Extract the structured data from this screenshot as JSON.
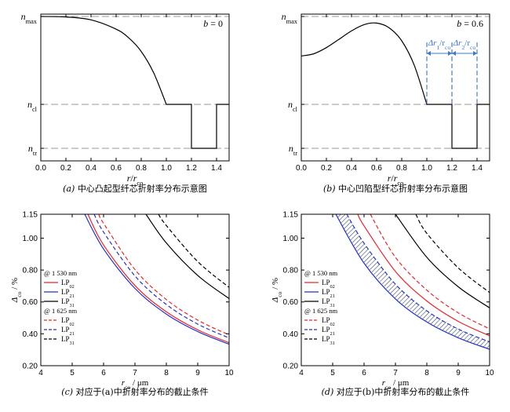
{
  "chart_data": [
    {
      "id": "a",
      "type": "line",
      "caption": "(a) 中心凸起型纤芯折射率分布示意图",
      "xlabel": "r/r",
      "xlabel_sub": "co",
      "xlim": [
        0,
        1.5
      ],
      "x_ticks": [
        "0.0",
        "0.2",
        "0.4",
        "0.6",
        "0.8",
        "1.0",
        "1.2",
        "1.4"
      ],
      "y_labels": [
        {
          "base": "n",
          "sub": "max",
          "level": "max"
        },
        {
          "base": "n",
          "sub": "cl",
          "level": "cl"
        },
        {
          "base": "n",
          "sub": "tr",
          "level": "tr"
        }
      ],
      "annotation": "b = 0",
      "series": [
        {
          "color": "#000000",
          "dash": "",
          "points": [
            [
              0,
              1.0
            ],
            [
              0.2,
              0.9964
            ],
            [
              0.4,
              0.9744
            ],
            [
              0.6,
              0.9036
            ],
            [
              0.7,
              0.8383
            ],
            [
              0.8,
              0.7344
            ],
            [
              0.9,
              0.5708
            ],
            [
              1.0,
              0.3333
            ],
            [
              1.2,
              0.3333
            ],
            [
              1.2,
              0.0
            ],
            [
              1.4,
              0.0
            ],
            [
              1.4,
              0.3333
            ],
            [
              1.5,
              0.3333
            ]
          ]
        }
      ],
      "reference_lines": [
        "max",
        "cl",
        "tr"
      ]
    },
    {
      "id": "b",
      "type": "line",
      "caption": "(b) 中心凹陷型纤芯折射率分布示意图",
      "xlabel": "r/r",
      "xlabel_sub": "co",
      "xlim": [
        0,
        1.5
      ],
      "x_ticks": [
        "0.0",
        "0.2",
        "0.4",
        "0.6",
        "0.8",
        "1.0",
        "1.2",
        "1.4"
      ],
      "y_labels": [
        {
          "base": "n",
          "sub": "max",
          "level": "max"
        },
        {
          "base": "n",
          "sub": "cl",
          "level": "cl"
        },
        {
          "base": "n",
          "sub": "tr",
          "level": "tr"
        }
      ],
      "annotation": "b = 0.6",
      "arrows": [
        {
          "label": "Δr",
          "label_sub": "1",
          "tail": "/r",
          "tail_sub": "co",
          "from": 1.0,
          "to": 1.2
        },
        {
          "label": "Δr",
          "label_sub": "2",
          "tail": "/r",
          "tail_sub": "co",
          "from": 1.2,
          "to": 1.4
        }
      ],
      "series": [
        {
          "color": "#000000",
          "dash": "",
          "points": [
            [
              0,
              0.7
            ],
            [
              0.1,
              0.7173
            ],
            [
              0.2,
              0.7639
            ],
            [
              0.3,
              0.8268
            ],
            [
              0.4,
              0.8907
            ],
            [
              0.5,
              0.9381
            ],
            [
              0.6,
              0.95
            ],
            [
              0.7,
              0.9137
            ],
            [
              0.8,
              0.8154
            ],
            [
              0.9,
              0.6298
            ],
            [
              1.0,
              0.3333
            ],
            [
              1.2,
              0.3333
            ],
            [
              1.2,
              0.0
            ],
            [
              1.4,
              0.0
            ],
            [
              1.4,
              0.3333
            ],
            [
              1.5,
              0.3333
            ]
          ]
        }
      ],
      "reference_lines": [
        "max",
        "cl",
        "tr"
      ]
    },
    {
      "id": "c",
      "type": "line",
      "caption": "(c) 对应于(a)中折射率分布的截止条件",
      "xlabel": "r",
      "xlabel_sub": "co",
      "xlabel_tail": " / μm",
      "ylabel": "Δ",
      "ylabel_sub": "co",
      "ylabel_tail": " / %",
      "xlim": [
        4,
        10
      ],
      "ylim": [
        0.2,
        1.15
      ],
      "x_ticks": [
        "4",
        "5",
        "6",
        "7",
        "8",
        "9",
        "10"
      ],
      "y_ticks": [
        "0.20",
        "0.40",
        "0.60",
        "0.80",
        "1.00",
        "1.15"
      ],
      "legend": {
        "group1": "@ 1 530 nm",
        "group2": "@ 1 625 nm",
        "items": [
          {
            "base": "LP",
            "sub": "02",
            "color": "#e8262a",
            "dash": ""
          },
          {
            "base": "LP",
            "sub": "21",
            "color": "#2432c8",
            "dash": ""
          },
          {
            "base": "LP",
            "sub": "31",
            "color": "#000000",
            "dash": ""
          },
          {
            "base": "LP",
            "sub": "02",
            "color": "#e8262a",
            "dash": "5,3"
          },
          {
            "base": "LP",
            "sub": "21",
            "color": "#2432c8",
            "dash": "5,3"
          },
          {
            "base": "LP",
            "sub": "31",
            "color": "#000000",
            "dash": "5,3"
          }
        ]
      },
      "series": [
        {
          "color": "#e8262a",
          "dash": "",
          "points": [
            [
              5.5,
              1.15
            ],
            [
              6,
              0.957
            ],
            [
              7,
              0.703
            ],
            [
              8,
              0.538
            ],
            [
              9,
              0.425
            ],
            [
              10,
              0.344
            ]
          ]
        },
        {
          "color": "#2432c8",
          "dash": "",
          "points": [
            [
              5.4,
              1.15
            ],
            [
              6,
              0.932
            ],
            [
              7,
              0.685
            ],
            [
              8,
              0.524
            ],
            [
              9,
              0.414
            ],
            [
              10,
              0.335
            ]
          ]
        },
        {
          "color": "#000000",
          "dash": "",
          "points": [
            [
              7.35,
              1.15
            ],
            [
              8,
              0.97
            ],
            [
              9,
              0.766
            ],
            [
              10,
              0.621
            ]
          ]
        },
        {
          "color": "#e8262a",
          "dash": "5,3",
          "points": [
            [
              5.85,
              1.15
            ],
            [
              6,
              1.093
            ],
            [
              7,
              0.803
            ],
            [
              8,
              0.615
            ],
            [
              9,
              0.486
            ],
            [
              10,
              0.393
            ]
          ]
        },
        {
          "color": "#2432c8",
          "dash": "5,3",
          "points": [
            [
              5.7,
              1.15
            ],
            [
              6,
              1.038
            ],
            [
              7,
              0.763
            ],
            [
              8,
              0.584
            ],
            [
              9,
              0.461
            ],
            [
              10,
              0.374
            ]
          ]
        },
        {
          "color": "#000000",
          "dash": "5,3",
          "points": [
            [
              7.75,
              1.15
            ],
            [
              8,
              1.079
            ],
            [
              9,
              0.853
            ],
            [
              10,
              0.691
            ]
          ]
        }
      ]
    },
    {
      "id": "d",
      "type": "line",
      "caption": "(d) 对应于(b)中折射率分布的截止条件",
      "xlabel": "r",
      "xlabel_sub": "co",
      "xlabel_tail": " / μm",
      "ylabel": "Δ",
      "ylabel_sub": "co",
      "ylabel_tail": " / %",
      "xlim": [
        4,
        10
      ],
      "ylim": [
        0.2,
        1.15
      ],
      "x_ticks": [
        "4",
        "5",
        "6",
        "7",
        "8",
        "9",
        "10"
      ],
      "y_ticks": [
        "0.20",
        "0.40",
        "0.60",
        "0.80",
        "1.00",
        "1.15"
      ],
      "legend": {
        "group1": "@ 1 530 nm",
        "group2": "@ 1 625 nm",
        "items": [
          {
            "base": "LP",
            "sub": "02",
            "color": "#e8262a",
            "dash": ""
          },
          {
            "base": "LP",
            "sub": "21",
            "color": "#2432c8",
            "dash": ""
          },
          {
            "base": "LP",
            "sub": "31",
            "color": "#000000",
            "dash": ""
          },
          {
            "base": "LP",
            "sub": "02",
            "color": "#e8262a",
            "dash": "5,3"
          },
          {
            "base": "LP",
            "sub": "21",
            "color": "#2432c8",
            "dash": "5,3"
          },
          {
            "base": "LP",
            "sub": "31",
            "color": "#000000",
            "dash": "5,3"
          }
        ]
      },
      "hatch_between": [
        1,
        3
      ],
      "series": [
        {
          "color": "#e8262a",
          "dash": "",
          "points": [
            [
              5.8,
              1.15
            ],
            [
              6,
              1.077
            ],
            [
              7,
              0.791
            ],
            [
              8,
              0.606
            ],
            [
              9,
              0.478
            ],
            [
              10,
              0.387
            ]
          ]
        },
        {
          "color": "#2432c8",
          "dash": "",
          "points": [
            [
              5.1,
              1.15
            ],
            [
              6,
              0.843
            ],
            [
              7,
              0.619
            ],
            [
              8,
              0.474
            ],
            [
              9,
              0.375
            ],
            [
              10,
              0.303
            ]
          ]
        },
        {
          "color": "#000000",
          "dash": "",
          "points": [
            [
              7.0,
              1.15
            ],
            [
              8,
              0.88
            ],
            [
              9,
              0.695
            ],
            [
              10,
              0.563
            ]
          ]
        },
        {
          "color": "#2432c8",
          "dash": "5,3",
          "points": [
            [
              5.45,
              1.15
            ],
            [
              6,
              0.968
            ],
            [
              7,
              0.711
            ],
            [
              8,
              0.544
            ],
            [
              9,
              0.43
            ],
            [
              10,
              0.349
            ]
          ]
        },
        {
          "color": "#e8262a",
          "dash": "5,3",
          "points": [
            [
              6.2,
              1.15
            ],
            [
              7,
              0.88
            ],
            [
              8,
              0.674
            ],
            [
              9,
              0.532
            ],
            [
              10,
              0.431
            ]
          ]
        },
        {
          "color": "#000000",
          "dash": "5,3",
          "points": [
            [
              7.65,
              1.15
            ],
            [
              8,
              1.03
            ],
            [
              9,
              0.814
            ],
            [
              10,
              0.659
            ]
          ]
        }
      ]
    }
  ]
}
